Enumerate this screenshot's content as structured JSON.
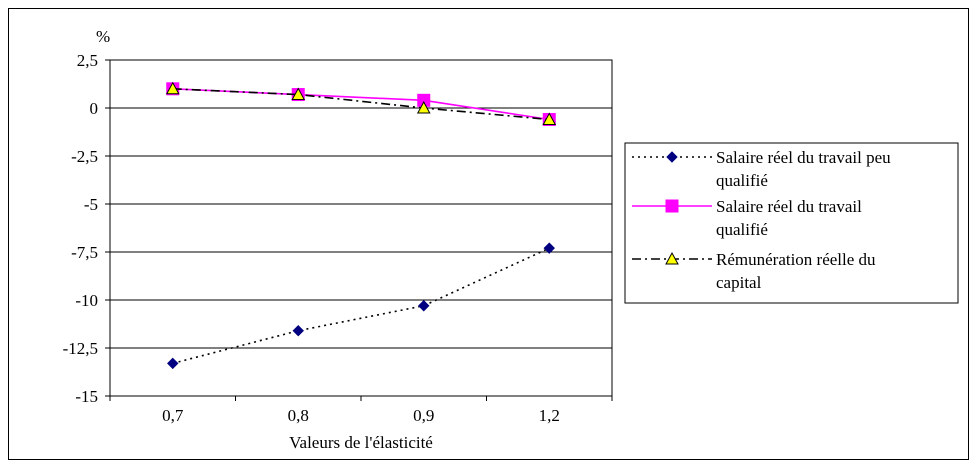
{
  "chart_data": {
    "type": "line",
    "title": "",
    "unit_label": "%",
    "xlabel": "Valeurs de l'élasticité",
    "ylabel": "",
    "categories": [
      "0,7",
      "0,8",
      "0,9",
      "1,2"
    ],
    "y_ticks": [
      2.5,
      0,
      -2.5,
      -5,
      -7.5,
      -10,
      -12.5,
      -15
    ],
    "y_tick_labels": [
      "2,5",
      "0",
      "-2,5",
      "-5",
      "-7,5",
      "-10",
      "-12,5",
      "-15"
    ],
    "ylim": [
      -15,
      2.5
    ],
    "grid": "horizontal",
    "legend_position": "right",
    "series": [
      {
        "name": "Salaire réel du travail peu qualifié",
        "values": [
          -13.3,
          -11.6,
          -10.3,
          -7.3
        ],
        "color": "#000080",
        "marker": "diamond",
        "line_style": "dotted",
        "line_color": "#000000"
      },
      {
        "name": "Salaire réel du travail qualifié",
        "values": [
          1.0,
          0.7,
          0.4,
          -0.6
        ],
        "color": "#ff00ff",
        "marker": "square",
        "line_style": "solid",
        "line_color": "#ff00ff"
      },
      {
        "name": "Rémunération réelle du capital",
        "values": [
          1.0,
          0.7,
          0.0,
          -0.6
        ],
        "color": "#ffff00",
        "marker": "triangle",
        "line_style": "dashdot",
        "line_color": "#000000"
      }
    ]
  },
  "legend": {
    "lines": [
      [
        "Salaire réel du travail peu",
        "qualifié"
      ],
      [
        "Salaire réel du travail",
        "qualifié"
      ],
      [
        "Rémunération réelle du",
        "capital"
      ]
    ]
  }
}
